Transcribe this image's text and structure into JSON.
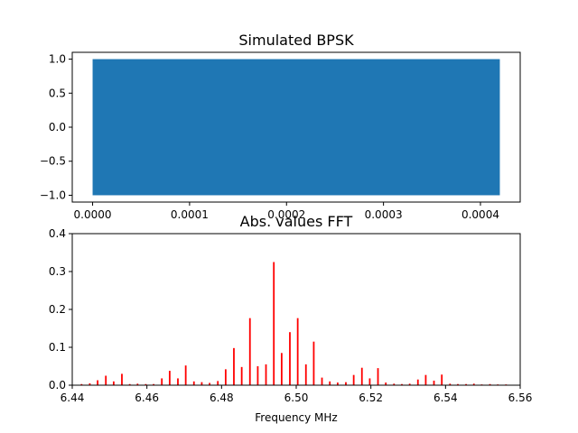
{
  "chart_data": [
    {
      "type": "line",
      "title": "Simulated BPSK",
      "xlabel": "",
      "ylabel": "",
      "xlim": [
        -2.1e-05,
        0.000441
      ],
      "ylim": [
        -1.1,
        1.1
      ],
      "x_range": [
        0,
        0.00042
      ],
      "y_range": [
        -1,
        1
      ],
      "xticks": [
        0,
        0.0001,
        0.0002,
        0.0003,
        0.0004
      ],
      "xtick_labels": [
        "0.0000",
        "0.0001",
        "0.0002",
        "0.0003",
        "0.0004"
      ],
      "yticks": [
        -1,
        -0.5,
        0,
        0.5,
        1
      ],
      "ytick_labels": [
        "−1.0",
        "−0.5",
        "0.0",
        "0.5",
        "1.0"
      ],
      "series": [
        {
          "color": "#1f77b4"
        }
      ],
      "grid": false
    },
    {
      "type": "bar",
      "title": "Abs. values FFT",
      "xlabel": "Frequency MHz",
      "ylabel": "",
      "xlim": [
        6.44,
        6.56
      ],
      "ylim": [
        0,
        0.4
      ],
      "xticks": [
        6.44,
        6.46,
        6.48,
        6.5,
        6.52,
        6.54,
        6.56
      ],
      "xtick_labels": [
        "6.44",
        "6.46",
        "6.48",
        "6.50",
        "6.52",
        "6.54",
        "6.56"
      ],
      "yticks": [
        0,
        0.1,
        0.2,
        0.3,
        0.4
      ],
      "ytick_labels": [
        "0.0",
        "0.1",
        "0.2",
        "0.3",
        "0.4"
      ],
      "color": "#ff0000",
      "x": [
        6.4425,
        6.4447,
        6.4468,
        6.449,
        6.4511,
        6.4533,
        6.4554,
        6.4575,
        6.4597,
        6.4618,
        6.464,
        6.4661,
        6.4683,
        6.4704,
        6.4726,
        6.4747,
        6.4768,
        6.479,
        6.4811,
        6.4833,
        6.4854,
        6.4876,
        6.4897,
        6.4919,
        6.494,
        6.4961,
        6.4983,
        6.5004,
        6.5026,
        6.5047,
        6.5069,
        6.509,
        6.5111,
        6.5133,
        6.5154,
        6.5176,
        6.5197,
        6.5219,
        6.524,
        6.5262,
        6.5283,
        6.5304,
        6.5326,
        6.5347,
        6.5369,
        6.539,
        6.5412,
        6.5433,
        6.5455,
        6.5476,
        6.5497,
        6.5519,
        6.554,
        6.5562
      ],
      "values": [
        0.003,
        0.005,
        0.013,
        0.025,
        0.01,
        0.03,
        0.003,
        0.004,
        0.003,
        0.003,
        0.018,
        0.038,
        0.018,
        0.052,
        0.01,
        0.008,
        0.006,
        0.011,
        0.042,
        0.098,
        0.048,
        0.177,
        0.05,
        0.055,
        0.325,
        0.085,
        0.14,
        0.177,
        0.055,
        0.115,
        0.02,
        0.01,
        0.007,
        0.008,
        0.027,
        0.046,
        0.018,
        0.045,
        0.007,
        0.004,
        0.003,
        0.004,
        0.015,
        0.027,
        0.012,
        0.028,
        0.004,
        0.003,
        0.003,
        0.004,
        0.002,
        0.003,
        0.002,
        0.002
      ],
      "grid": false
    }
  ]
}
